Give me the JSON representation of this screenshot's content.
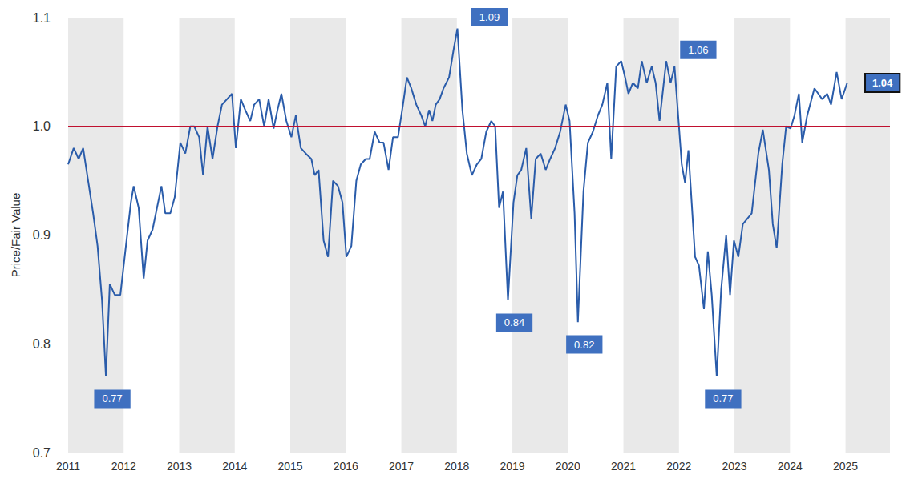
{
  "chart_data": {
    "type": "line",
    "y_label": "Price/Fair Value",
    "color": "#2a5caa",
    "x": [
      2011.0,
      2011.1,
      2011.19,
      2011.27,
      2011.36,
      2011.45,
      2011.53,
      2011.61,
      2011.68,
      2011.75,
      2011.84,
      2011.94,
      2012.04,
      2012.13,
      2012.18,
      2012.27,
      2012.36,
      2012.43,
      2012.52,
      2012.6,
      2012.68,
      2012.75,
      2012.84,
      2012.92,
      2013.02,
      2013.11,
      2013.2,
      2013.27,
      2013.36,
      2013.43,
      2013.51,
      2013.6,
      2013.69,
      2013.77,
      2013.86,
      2013.95,
      2014.02,
      2014.11,
      2014.19,
      2014.28,
      2014.35,
      2014.44,
      2014.53,
      2014.61,
      2014.7,
      2014.77,
      2014.84,
      2014.93,
      2015.02,
      2015.1,
      2015.19,
      2015.28,
      2015.38,
      2015.44,
      2015.51,
      2015.6,
      2015.68,
      2015.77,
      2015.86,
      2015.94,
      2016.01,
      2016.1,
      2016.19,
      2016.27,
      2016.36,
      2016.43,
      2016.52,
      2016.61,
      2016.68,
      2016.77,
      2016.85,
      2016.94,
      2017.03,
      2017.1,
      2017.18,
      2017.27,
      2017.36,
      2017.43,
      2017.5,
      2017.56,
      2017.62,
      2017.69,
      2017.76,
      2017.86,
      2017.94,
      2018.01,
      2018.1,
      2018.18,
      2018.27,
      2018.36,
      2018.44,
      2018.53,
      2018.62,
      2018.69,
      2018.76,
      2018.83,
      2018.92,
      2019.02,
      2019.09,
      2019.16,
      2019.25,
      2019.34,
      2019.42,
      2019.51,
      2019.6,
      2019.68,
      2019.77,
      2019.86,
      2019.96,
      2020.03,
      2020.12,
      2020.18,
      2020.28,
      2020.36,
      2020.45,
      2020.54,
      2020.62,
      2020.71,
      2020.78,
      2020.87,
      2020.96,
      2021.03,
      2021.09,
      2021.17,
      2021.26,
      2021.33,
      2021.42,
      2021.51,
      2021.58,
      2021.65,
      2021.77,
      2021.85,
      2021.92,
      2022.0,
      2022.05,
      2022.11,
      2022.17,
      2022.29,
      2022.36,
      2022.45,
      2022.52,
      2022.59,
      2022.68,
      2022.76,
      2022.85,
      2022.92,
      2022.99,
      2023.07,
      2023.15,
      2023.23,
      2023.31,
      2023.43,
      2023.51,
      2023.62,
      2023.69,
      2023.76,
      2023.86,
      2023.93,
      2024.01,
      2024.08,
      2024.16,
      2024.22,
      2024.31,
      2024.44,
      2024.51,
      2024.58,
      2024.67,
      2024.74,
      2024.84,
      2024.93,
      2025.03
    ],
    "values": [
      0.965,
      0.98,
      0.97,
      0.98,
      0.95,
      0.92,
      0.89,
      0.84,
      0.77,
      0.855,
      0.845,
      0.845,
      0.89,
      0.93,
      0.945,
      0.925,
      0.86,
      0.895,
      0.905,
      0.925,
      0.945,
      0.92,
      0.92,
      0.935,
      0.985,
      0.975,
      1.0,
      1.0,
      0.99,
      0.955,
      1.0,
      0.97,
      1.0,
      1.02,
      1.025,
      1.03,
      0.98,
      1.025,
      1.015,
      1.005,
      1.02,
      1.025,
      1.0,
      1.025,
      0.998,
      1.015,
      1.03,
      1.005,
      0.99,
      1.01,
      0.98,
      0.975,
      0.97,
      0.955,
      0.96,
      0.895,
      0.88,
      0.95,
      0.945,
      0.93,
      0.88,
      0.89,
      0.95,
      0.965,
      0.97,
      0.97,
      0.995,
      0.985,
      0.985,
      0.96,
      0.99,
      0.99,
      1.02,
      1.045,
      1.035,
      1.02,
      1.01,
      1.0,
      1.015,
      1.005,
      1.02,
      1.025,
      1.035,
      1.045,
      1.07,
      1.09,
      1.015,
      0.975,
      0.955,
      0.965,
      0.97,
      0.995,
      1.005,
      1.0,
      0.925,
      0.94,
      0.84,
      0.93,
      0.955,
      0.96,
      0.98,
      0.915,
      0.97,
      0.975,
      0.96,
      0.97,
      0.98,
      0.995,
      1.02,
      1.005,
      0.92,
      0.82,
      0.94,
      0.985,
      0.995,
      1.01,
      1.02,
      1.04,
      0.97,
      1.055,
      1.06,
      1.045,
      1.03,
      1.04,
      1.035,
      1.06,
      1.04,
      1.055,
      1.04,
      1.005,
      1.06,
      1.04,
      1.055,
      1.0,
      0.965,
      0.948,
      0.978,
      0.88,
      0.872,
      0.832,
      0.885,
      0.845,
      0.77,
      0.85,
      0.9,
      0.845,
      0.895,
      0.88,
      0.91,
      0.915,
      0.92,
      0.975,
      0.997,
      0.96,
      0.91,
      0.888,
      0.965,
      1.0,
      0.998,
      1.01,
      1.03,
      0.985,
      1.01,
      1.035,
      1.03,
      1.025,
      1.03,
      1.02,
      1.05,
      1.025,
      1.04
    ],
    "xlim": [
      2011,
      2025.8
    ],
    "xticks": [
      2011,
      2012,
      2013,
      2014,
      2015,
      2016,
      2017,
      2018,
      2019,
      2020,
      2021,
      2022,
      2023,
      2024,
      2025
    ],
    "ylim": [
      0.7,
      1.1
    ],
    "yticks": [
      0.7,
      0.8,
      0.9,
      {
        "value": 1,
        "label": "1.0"
      },
      1.1
    ],
    "grid": true,
    "reference_line": 1,
    "annotations": [
      {
        "x": 2011.68,
        "y": 0.77,
        "label": "0.77"
      },
      {
        "x": 2018.01,
        "y": 1.09,
        "label": "1.09"
      },
      {
        "x": 2018.92,
        "y": 0.84,
        "label": "0.84"
      },
      {
        "x": 2020.18,
        "y": 0.82,
        "label": "0.82"
      },
      {
        "x": 2022.68,
        "y": 0.77,
        "label": "0.77"
      },
      {
        "x": 2021.77,
        "y": 1.06,
        "label": "1.06"
      },
      {
        "x": 2025.03,
        "y": 1.04,
        "label": "1.04"
      }
    ]
  }
}
